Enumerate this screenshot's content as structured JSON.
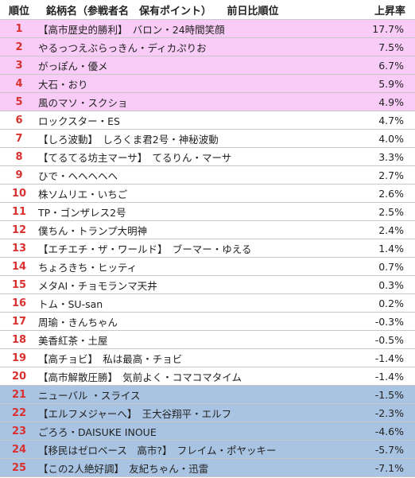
{
  "header": {
    "rank": "順位",
    "name": "銘柄名（参戦者名　保有ポイント）　　前日比順位",
    "rate": "上昇率"
  },
  "rows": [
    {
      "rank": "1",
      "name": "【高市歴史的勝利】　バロン・24時間笑顔",
      "rate": "17.7%",
      "band": "pink"
    },
    {
      "rank": "2",
      "name": "やるっつえぶらっきん・ディカぷりお",
      "rate": "7.5%",
      "band": "pink"
    },
    {
      "rank": "3",
      "name": "がっぽん・優メ",
      "rate": "6.7%",
      "band": "pink"
    },
    {
      "rank": "4",
      "name": "大石・おり",
      "rate": "5.9%",
      "band": "pink"
    },
    {
      "rank": "5",
      "name": "風のマソ・スクショ",
      "rate": "4.9%",
      "band": "pink"
    },
    {
      "rank": "6",
      "name": "ロックスター・ES",
      "rate": "4.7%",
      "band": "none"
    },
    {
      "rank": "7",
      "name": "【しろ波動】　しろくま君2号・神秘波動",
      "rate": "4.0%",
      "band": "none"
    },
    {
      "rank": "8",
      "name": "【てるてる坊主マーサ】　てるりん・マーサ",
      "rate": "3.3%",
      "band": "none"
    },
    {
      "rank": "9",
      "name": "ひで・ヘヘヘヘヘ",
      "rate": "2.7%",
      "band": "none"
    },
    {
      "rank": "10",
      "name": "株ソムリエ・いちご",
      "rate": "2.6%",
      "band": "none"
    },
    {
      "rank": "11",
      "name": "TP・ゴンザレス2号",
      "rate": "2.5%",
      "band": "none"
    },
    {
      "rank": "12",
      "name": "僕ちん・トランプ大明神",
      "rate": "2.4%",
      "band": "none"
    },
    {
      "rank": "13",
      "name": "【エチエチ・ザ・ワールド】　ブーマー・ゆえる",
      "rate": "1.4%",
      "band": "none"
    },
    {
      "rank": "14",
      "name": "ちょろきち・ヒッティ",
      "rate": "0.7%",
      "band": "none"
    },
    {
      "rank": "15",
      "name": "メタAI・チョモランマ天井",
      "rate": "0.3%",
      "band": "none"
    },
    {
      "rank": "16",
      "name": "トム・SU-san",
      "rate": "0.2%",
      "band": "none"
    },
    {
      "rank": "17",
      "name": "周瑜・きんちゃん",
      "rate": "-0.3%",
      "band": "none"
    },
    {
      "rank": "18",
      "name": "美香紅茶・土屋",
      "rate": "-0.5%",
      "band": "none"
    },
    {
      "rank": "19",
      "name": "【高チョビ】　私は最高・チョビ",
      "rate": "-1.4%",
      "band": "none"
    },
    {
      "rank": "20",
      "name": "【高市解散圧勝】　気前よく・コマコマタイム",
      "rate": "-1.4%",
      "band": "none"
    },
    {
      "rank": "21",
      "name": "ニューバル ・スライス",
      "rate": "-1.5%",
      "band": "blue"
    },
    {
      "rank": "22",
      "name": "【エルフメジャーへ】　王大谷翔平・エルフ",
      "rate": "-2.3%",
      "band": "blue"
    },
    {
      "rank": "23",
      "name": "ごろろ・DAISUKE INOUE",
      "rate": "-4.6%",
      "band": "blue"
    },
    {
      "rank": "24",
      "name": "【移民はゼロベース　高市?】　フレイム・ポヤッキー",
      "rate": "-5.7%",
      "band": "blue"
    },
    {
      "rank": "25",
      "name": "【この2人絶好調】　友紀ちゃん・迅雷",
      "rate": "-7.1%",
      "band": "blue"
    }
  ]
}
